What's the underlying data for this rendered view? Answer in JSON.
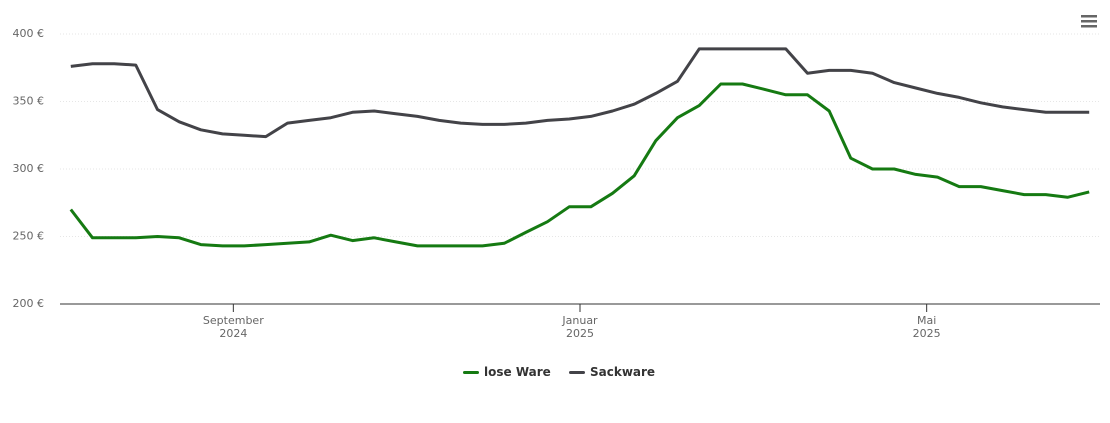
{
  "chart_data": {
    "type": "line",
    "x": [
      "2024-07",
      "2024-07",
      "2024-07",
      "2024-07",
      "2024-08",
      "2024-08",
      "2024-08",
      "2024-08",
      "2024-09",
      "2024-09",
      "2024-09",
      "2024-09",
      "2024-10",
      "2024-10",
      "2024-10",
      "2024-10",
      "2024-11",
      "2024-11",
      "2024-11",
      "2024-11",
      "2024-12",
      "2024-12",
      "2024-12",
      "2024-12",
      "2025-01",
      "2025-01",
      "2025-01",
      "2025-01",
      "2025-02",
      "2025-02",
      "2025-02",
      "2025-02",
      "2025-03",
      "2025-03",
      "2025-03",
      "2025-03",
      "2025-04",
      "2025-04",
      "2025-04",
      "2025-04",
      "2025-05",
      "2025-05",
      "2025-05",
      "2025-05",
      "2025-06",
      "2025-06",
      "2025-06",
      "2025-06"
    ],
    "series": [
      {
        "name": "lose Ware",
        "color": "#157a12",
        "values": [
          270,
          249,
          249,
          249,
          250,
          249,
          244,
          243,
          243,
          244,
          245,
          246,
          251,
          247,
          249,
          246,
          243,
          243,
          243,
          243,
          245,
          253,
          261,
          272,
          272,
          282,
          295,
          321,
          338,
          347,
          363,
          363,
          359,
          355,
          355,
          343,
          308,
          300,
          300,
          296,
          294,
          287,
          287,
          284,
          281,
          281,
          279,
          283
        ]
      },
      {
        "name": "Sackware",
        "color": "#434348",
        "values": [
          376,
          378,
          378,
          377,
          344,
          335,
          329,
          326,
          325,
          324,
          334,
          336,
          338,
          342,
          343,
          341,
          339,
          336,
          334,
          333,
          333,
          334,
          336,
          337,
          339,
          343,
          348,
          356,
          365,
          389,
          389,
          389,
          389,
          389,
          371,
          373,
          373,
          371,
          364,
          360,
          356,
          353,
          349,
          346,
          344,
          342,
          342,
          342
        ]
      }
    ],
    "xlim": [
      "2024-07",
      "2025-06"
    ],
    "xticks": [
      {
        "value": "2024-09",
        "label": "September\n2024"
      },
      {
        "value": "2025-01",
        "label": "Januar\n2025"
      },
      {
        "value": "2025-05",
        "label": "Mai\n2025"
      }
    ],
    "ylim": [
      200,
      400
    ],
    "yticks": [
      {
        "value": 200,
        "label": "200 €"
      },
      {
        "value": 250,
        "label": "250 €"
      },
      {
        "value": 300,
        "label": "300 €"
      },
      {
        "value": 350,
        "label": "350 €"
      },
      {
        "value": 400,
        "label": "400 €"
      }
    ],
    "grid": true
  }
}
